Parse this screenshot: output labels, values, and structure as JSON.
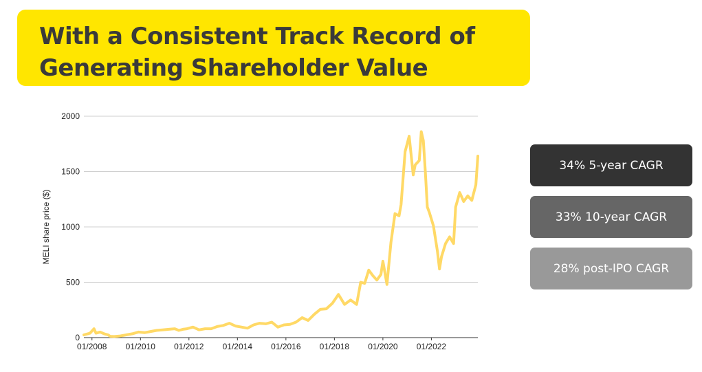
{
  "header": {
    "title_line1": "With a Consistent Track Record of",
    "title_line2": "Generating Shareholder Value",
    "color": "#ffe600"
  },
  "cagr_pills": [
    {
      "label": "34% 5-year CAGR",
      "color": "#333333"
    },
    {
      "label": "33% 10-year CAGR",
      "color": "#666666"
    },
    {
      "label": "28% post-IPO CAGR",
      "color": "#999999"
    }
  ],
  "chart_data": {
    "type": "line",
    "title": "",
    "xlabel": "",
    "ylabel": "MELI share price ($)",
    "ylim": [
      0,
      2000
    ],
    "yticks": [
      0,
      500,
      1000,
      1500,
      2000
    ],
    "xticks": [
      "01/2008",
      "01/2010",
      "01/2012",
      "01/2014",
      "01/2016",
      "01/2018",
      "01/2020",
      "01/2022"
    ],
    "xrange": [
      "2007-09",
      "2023-12"
    ],
    "grid": "horizontal",
    "line_color": "#ffd966",
    "series": [
      {
        "name": "",
        "points": [
          [
            "2007-09",
            25
          ],
          [
            "2007-12",
            40
          ],
          [
            "2008-02",
            80
          ],
          [
            "2008-03",
            40
          ],
          [
            "2008-05",
            50
          ],
          [
            "2008-07",
            35
          ],
          [
            "2008-09",
            25
          ],
          [
            "2008-10",
            12
          ],
          [
            "2008-12",
            10
          ],
          [
            "2009-03",
            15
          ],
          [
            "2009-06",
            25
          ],
          [
            "2009-09",
            35
          ],
          [
            "2009-12",
            50
          ],
          [
            "2010-03",
            45
          ],
          [
            "2010-06",
            55
          ],
          [
            "2010-09",
            65
          ],
          [
            "2010-12",
            70
          ],
          [
            "2011-03",
            75
          ],
          [
            "2011-06",
            80
          ],
          [
            "2011-08",
            65
          ],
          [
            "2011-10",
            75
          ],
          [
            "2011-12",
            80
          ],
          [
            "2012-03",
            95
          ],
          [
            "2012-06",
            70
          ],
          [
            "2012-09",
            80
          ],
          [
            "2012-12",
            80
          ],
          [
            "2013-03",
            100
          ],
          [
            "2013-06",
            110
          ],
          [
            "2013-09",
            130
          ],
          [
            "2013-12",
            105
          ],
          [
            "2014-03",
            95
          ],
          [
            "2014-06",
            85
          ],
          [
            "2014-09",
            115
          ],
          [
            "2014-12",
            130
          ],
          [
            "2015-03",
            125
          ],
          [
            "2015-06",
            140
          ],
          [
            "2015-09",
            95
          ],
          [
            "2015-12",
            115
          ],
          [
            "2016-03",
            120
          ],
          [
            "2016-06",
            140
          ],
          [
            "2016-09",
            180
          ],
          [
            "2016-12",
            155
          ],
          [
            "2017-03",
            210
          ],
          [
            "2017-06",
            255
          ],
          [
            "2017-09",
            260
          ],
          [
            "2017-12",
            310
          ],
          [
            "2018-03",
            390
          ],
          [
            "2018-06",
            300
          ],
          [
            "2018-09",
            340
          ],
          [
            "2018-12",
            300
          ],
          [
            "2019-02",
            500
          ],
          [
            "2019-04",
            490
          ],
          [
            "2019-06",
            610
          ],
          [
            "2019-08",
            560
          ],
          [
            "2019-10",
            520
          ],
          [
            "2019-12",
            570
          ],
          [
            "2020-01",
            690
          ],
          [
            "2020-03",
            480
          ],
          [
            "2020-05",
            860
          ],
          [
            "2020-07",
            1120
          ],
          [
            "2020-09",
            1100
          ],
          [
            "2020-10",
            1200
          ],
          [
            "2020-12",
            1680
          ],
          [
            "2021-02",
            1820
          ],
          [
            "2021-04",
            1470
          ],
          [
            "2021-05",
            1560
          ],
          [
            "2021-07",
            1600
          ],
          [
            "2021-08",
            1860
          ],
          [
            "2021-09",
            1780
          ],
          [
            "2021-10",
            1500
          ],
          [
            "2021-11",
            1180
          ],
          [
            "2021-12",
            1130
          ],
          [
            "2022-02",
            1010
          ],
          [
            "2022-04",
            780
          ],
          [
            "2022-05",
            620
          ],
          [
            "2022-06",
            730
          ],
          [
            "2022-08",
            850
          ],
          [
            "2022-10",
            910
          ],
          [
            "2022-12",
            850
          ],
          [
            "2023-01",
            1180
          ],
          [
            "2023-03",
            1310
          ],
          [
            "2023-05",
            1230
          ],
          [
            "2023-07",
            1280
          ],
          [
            "2023-09",
            1240
          ],
          [
            "2023-11",
            1380
          ],
          [
            "2023-12",
            1640
          ]
        ]
      }
    ]
  }
}
